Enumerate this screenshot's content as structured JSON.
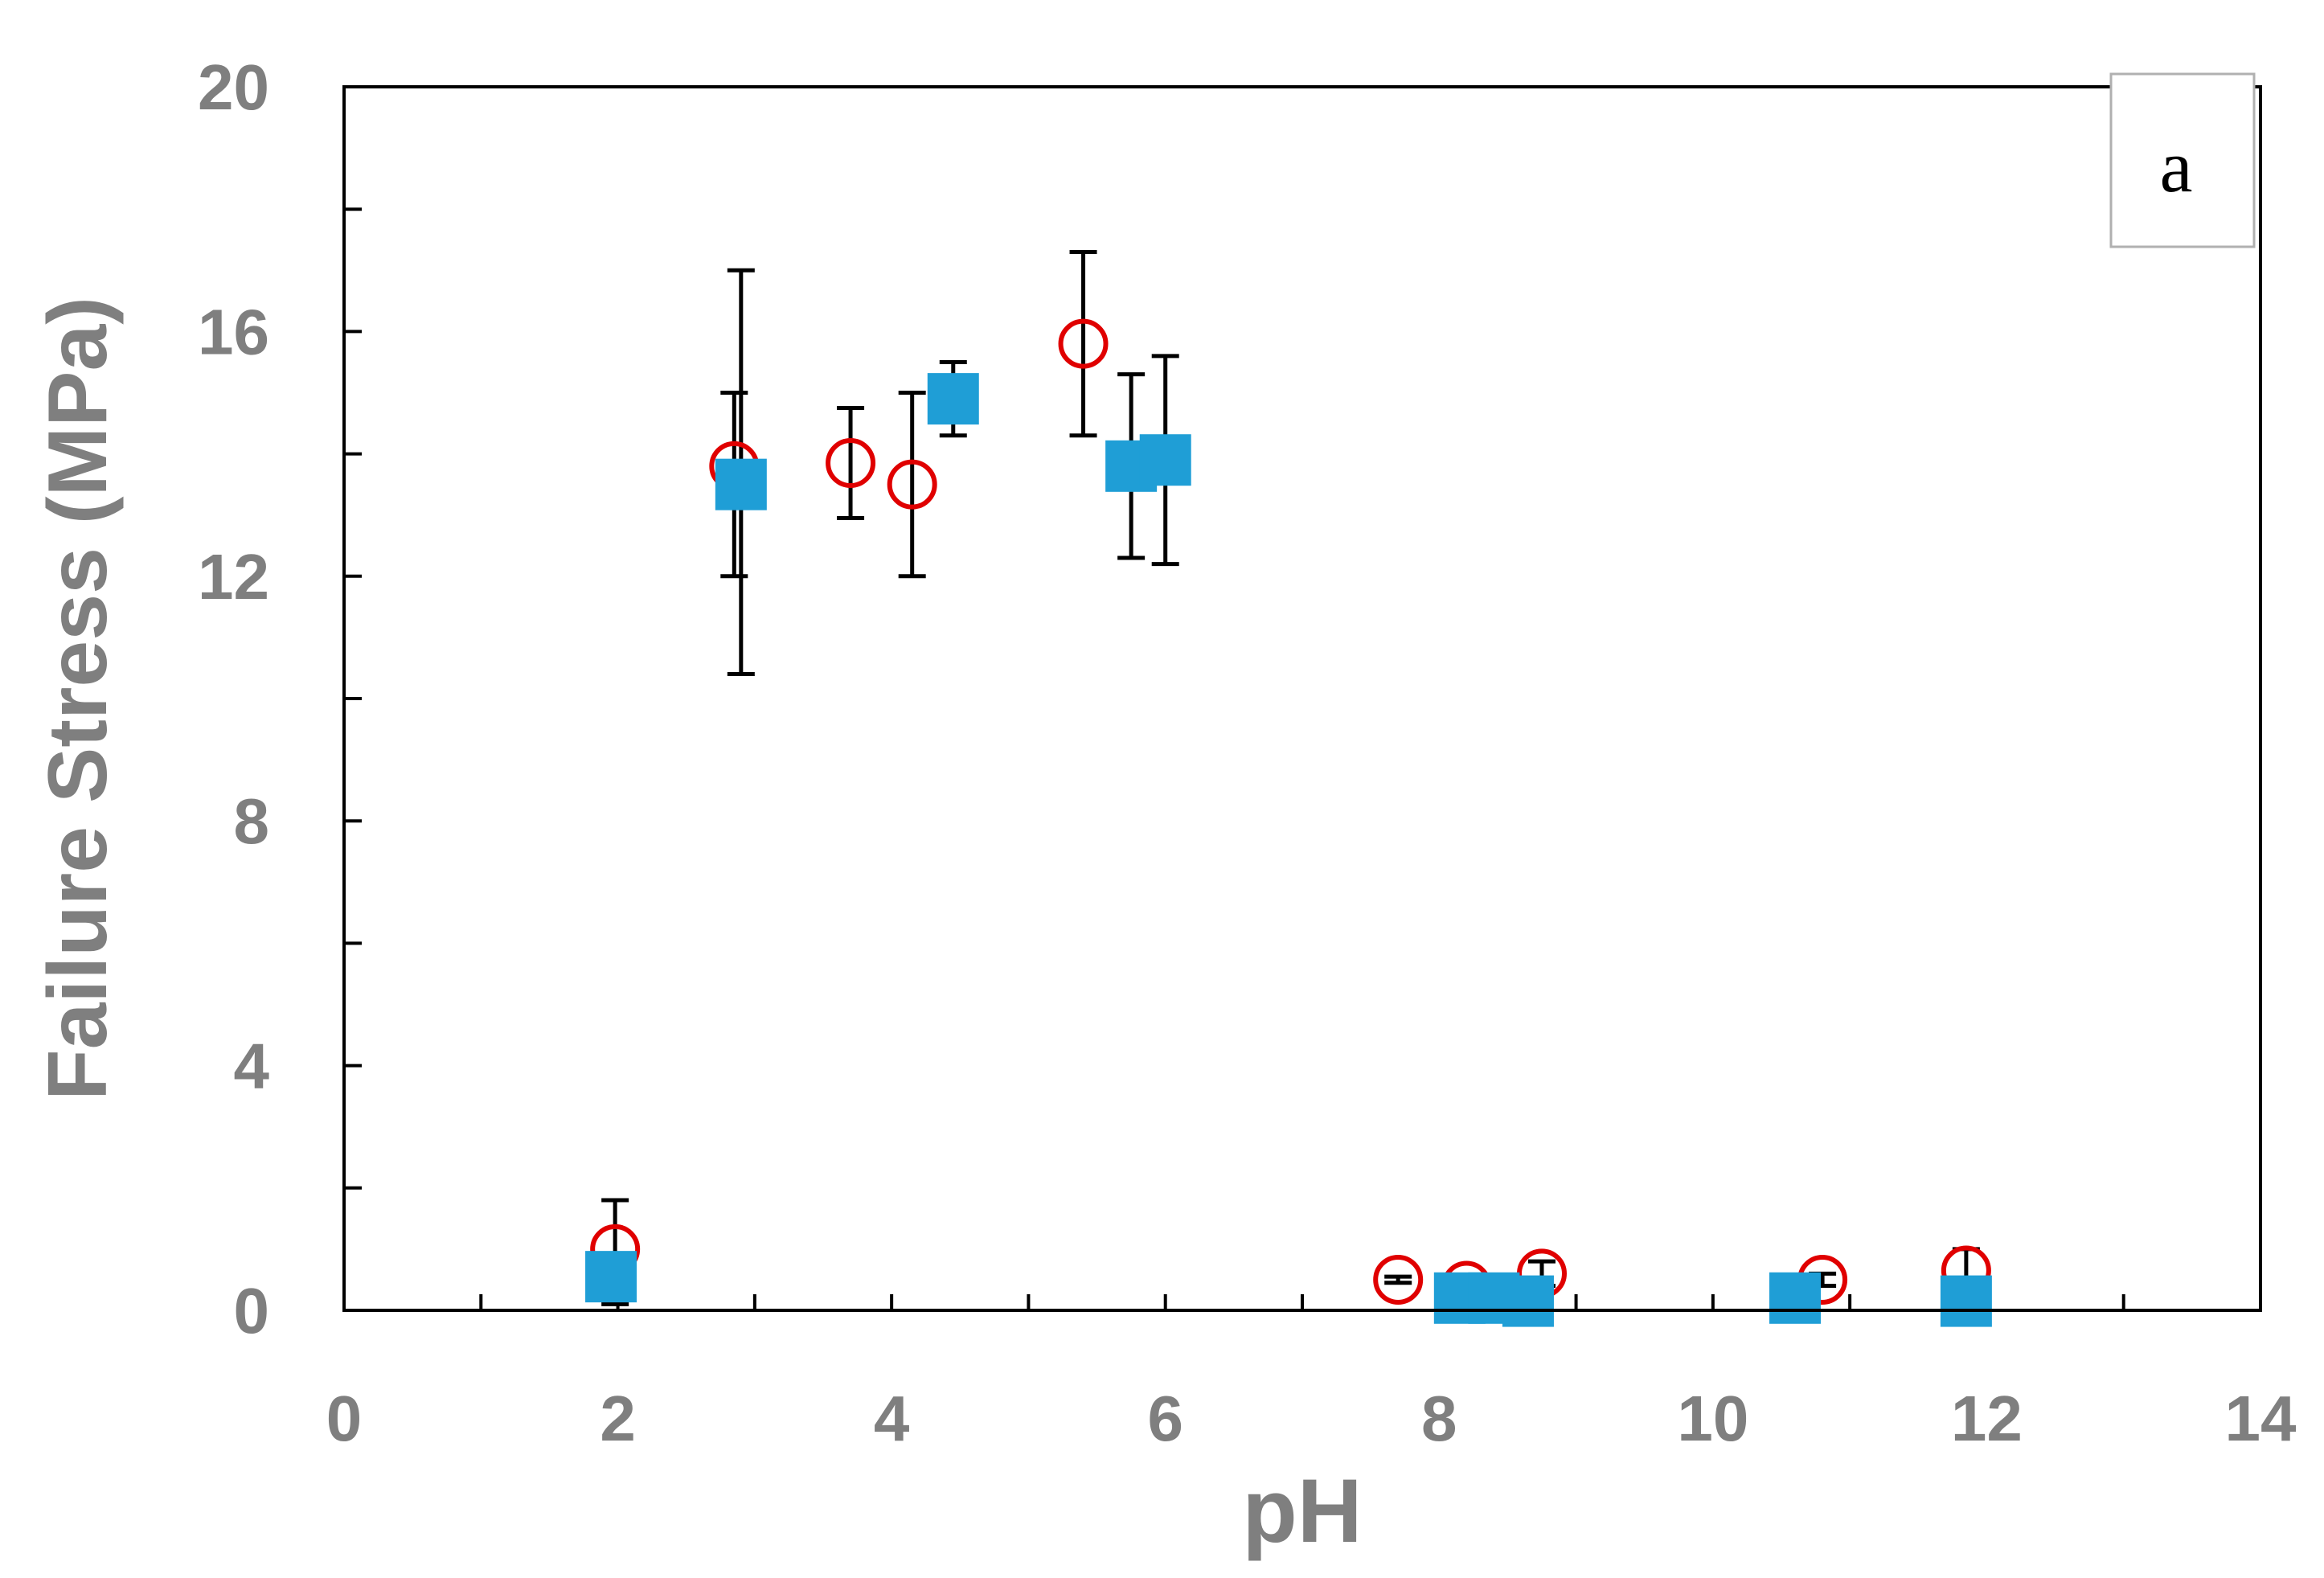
{
  "chart_data": {
    "type": "scatter",
    "title": "",
    "xlabel": "pH",
    "ylabel": "Failure Stress (MPa)",
    "xlim": [
      0,
      14
    ],
    "ylim": [
      0,
      20
    ],
    "xticks": [
      0,
      2,
      4,
      6,
      8,
      10,
      12,
      14
    ],
    "yticks": [
      0,
      4,
      8,
      12,
      16,
      20
    ],
    "x_minor_step": 1,
    "y_minor_step": 2,
    "grid": false,
    "legend": "none",
    "panel_label": "a",
    "series": [
      {
        "marker": "open-circle",
        "color": "#e00000",
        "points": [
          {
            "x": 1.98,
            "y": 1.0,
            "err_low": 0.9,
            "err_high": 0.8
          },
          {
            "x": 2.85,
            "y": 13.8,
            "err_low": 1.8,
            "err_high": 1.2
          },
          {
            "x": 3.7,
            "y": 13.85,
            "err_low": 0.9,
            "err_high": 0.9
          },
          {
            "x": 4.15,
            "y": 13.5,
            "err_low": 1.5,
            "err_high": 1.5
          },
          {
            "x": 5.4,
            "y": 15.8,
            "err_low": 1.5,
            "err_high": 1.5
          },
          {
            "x": 7.7,
            "y": 0.5,
            "err_low": 0.05,
            "err_high": 0.05
          },
          {
            "x": 8.2,
            "y": 0.4,
            "err_low": 0.1,
            "err_high": 0.1
          },
          {
            "x": 8.75,
            "y": 0.6,
            "err_low": 0.2,
            "err_high": 0.2
          },
          {
            "x": 10.8,
            "y": 0.5,
            "err_low": 0.1,
            "err_high": 0.1
          },
          {
            "x": 11.85,
            "y": 0.65,
            "err_low": 0.35,
            "err_high": 0.35
          }
        ]
      },
      {
        "marker": "filled-square",
        "color": "#1f9ed6",
        "points": [
          {
            "x": 1.95,
            "y": 0.55,
            "err_low": 0.3,
            "err_high": 0.3
          },
          {
            "x": 2.9,
            "y": 13.5,
            "err_low": 3.1,
            "err_high": 3.5
          },
          {
            "x": 4.45,
            "y": 14.9,
            "err_low": 0.6,
            "err_high": 0.6
          },
          {
            "x": 5.75,
            "y": 13.8,
            "err_low": 1.5,
            "err_high": 1.5
          },
          {
            "x": 6.0,
            "y": 13.9,
            "err_low": 1.7,
            "err_high": 1.7
          },
          {
            "x": 8.15,
            "y": 0.2,
            "err_low": 0.05,
            "err_high": 0.05
          },
          {
            "x": 8.4,
            "y": 0.2,
            "err_low": 0.05,
            "err_high": 0.05
          },
          {
            "x": 8.65,
            "y": 0.15,
            "err_low": 0.05,
            "err_high": 0.05
          },
          {
            "x": 10.6,
            "y": 0.2,
            "err_low": 0.05,
            "err_high": 0.05
          },
          {
            "x": 11.85,
            "y": 0.15,
            "err_low": 0.05,
            "err_high": 0.05
          }
        ]
      }
    ]
  }
}
